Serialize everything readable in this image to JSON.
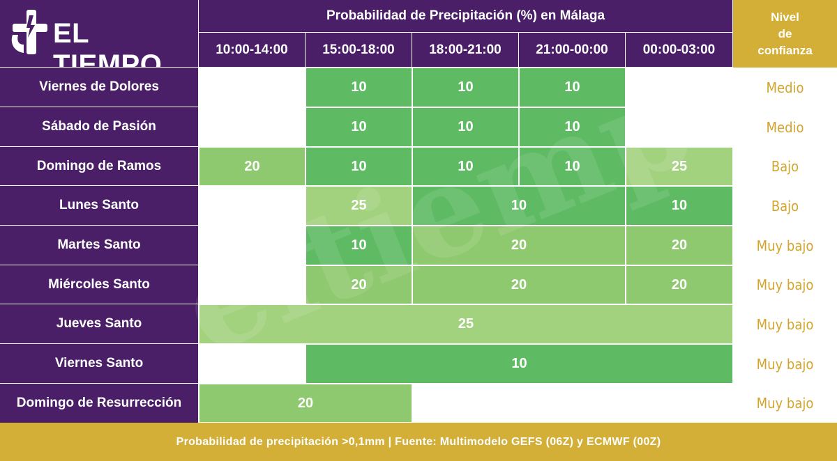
{
  "brand": {
    "name": "EL TIEMPO",
    "logo_icon": "cross-lightning-logo-icon"
  },
  "header": {
    "title": "Probabilidad de Precipitación (%) en Málaga",
    "confidence_title_lines": [
      "Nivel",
      "de",
      "confianza"
    ],
    "slots": [
      "10:00-14:00",
      "15:00-18:00",
      "18:00-21:00",
      "21:00-00:00",
      "00:00-03:00"
    ]
  },
  "rows": [
    {
      "day": "Viernes de Dolores",
      "confidence": "Medio"
    },
    {
      "day": "Sábado de Pasión",
      "confidence": "Medio"
    },
    {
      "day": "Domingo de Ramos",
      "confidence": "Bajo"
    },
    {
      "day": "Lunes Santo",
      "confidence": "Bajo"
    },
    {
      "day": "Martes Santo",
      "confidence": "Muy bajo"
    },
    {
      "day": "Miércoles Santo",
      "confidence": "Muy bajo"
    },
    {
      "day": "Jueves Santo",
      "confidence": "Muy bajo"
    },
    {
      "day": "Viernes Santo",
      "confidence": "Muy bajo"
    },
    {
      "day": "Domingo de Resurrección",
      "confidence": "Muy bajo"
    }
  ],
  "footer": {
    "text": "Probabilidad de precipitación >0,1mm | Fuente: Multimodelo GEFS (06Z) y ECMWF (00Z)"
  },
  "colors": {
    "purple": "#4a1f68",
    "gold": "#d4af37",
    "confidence_text": "#d4a52c",
    "value_10": "#5eba63",
    "value_20": "#8fc96f",
    "value_25": "#a3d27f"
  },
  "chart_data": {
    "type": "table",
    "title": "Probabilidad de Precipitación (%) en Málaga",
    "columns": [
      "10:00-14:00",
      "15:00-18:00",
      "18:00-21:00",
      "21:00-00:00",
      "00:00-03:00"
    ],
    "rows": [
      {
        "day": "Viernes de Dolores",
        "cells": [
          {
            "span": [
              1,
              1
            ],
            "value": 10
          },
          {
            "span": [
              2,
              2
            ],
            "value": 10
          },
          {
            "span": [
              3,
              3
            ],
            "value": 10
          }
        ],
        "confidence": "Medio"
      },
      {
        "day": "Sábado de Pasión",
        "cells": [
          {
            "span": [
              1,
              1
            ],
            "value": 10
          },
          {
            "span": [
              2,
              2
            ],
            "value": 10
          },
          {
            "span": [
              3,
              3
            ],
            "value": 10
          }
        ],
        "confidence": "Medio"
      },
      {
        "day": "Domingo de Ramos",
        "cells": [
          {
            "span": [
              0,
              0
            ],
            "value": 20
          },
          {
            "span": [
              1,
              1
            ],
            "value": 10
          },
          {
            "span": [
              2,
              2
            ],
            "value": 10
          },
          {
            "span": [
              3,
              3
            ],
            "value": 10
          },
          {
            "span": [
              4,
              4
            ],
            "value": 25
          }
        ],
        "confidence": "Bajo"
      },
      {
        "day": "Lunes Santo",
        "cells": [
          {
            "span": [
              1,
              1
            ],
            "value": 25
          },
          {
            "span": [
              2,
              3
            ],
            "value": 10
          },
          {
            "span": [
              4,
              4
            ],
            "value": 10
          }
        ],
        "confidence": "Bajo"
      },
      {
        "day": "Martes Santo",
        "cells": [
          {
            "span": [
              1,
              1
            ],
            "value": 10
          },
          {
            "span": [
              2,
              3
            ],
            "value": 20
          },
          {
            "span": [
              4,
              4
            ],
            "value": 20
          }
        ],
        "confidence": "Muy bajo"
      },
      {
        "day": "Miércoles Santo",
        "cells": [
          {
            "span": [
              1,
              1
            ],
            "value": 20
          },
          {
            "span": [
              2,
              3
            ],
            "value": 20
          },
          {
            "span": [
              4,
              4
            ],
            "value": 20
          }
        ],
        "confidence": "Muy bajo"
      },
      {
        "day": "Jueves Santo",
        "cells": [
          {
            "span": [
              0,
              4
            ],
            "value": 25
          }
        ],
        "confidence": "Muy bajo"
      },
      {
        "day": "Viernes Santo",
        "cells": [
          {
            "span": [
              1,
              4
            ],
            "value": 10
          }
        ],
        "confidence": "Muy bajo"
      },
      {
        "day": "Domingo de Resurrección",
        "cells": [
          {
            "span": [
              0,
              1
            ],
            "value": 20
          }
        ],
        "confidence": "Muy bajo"
      }
    ]
  }
}
